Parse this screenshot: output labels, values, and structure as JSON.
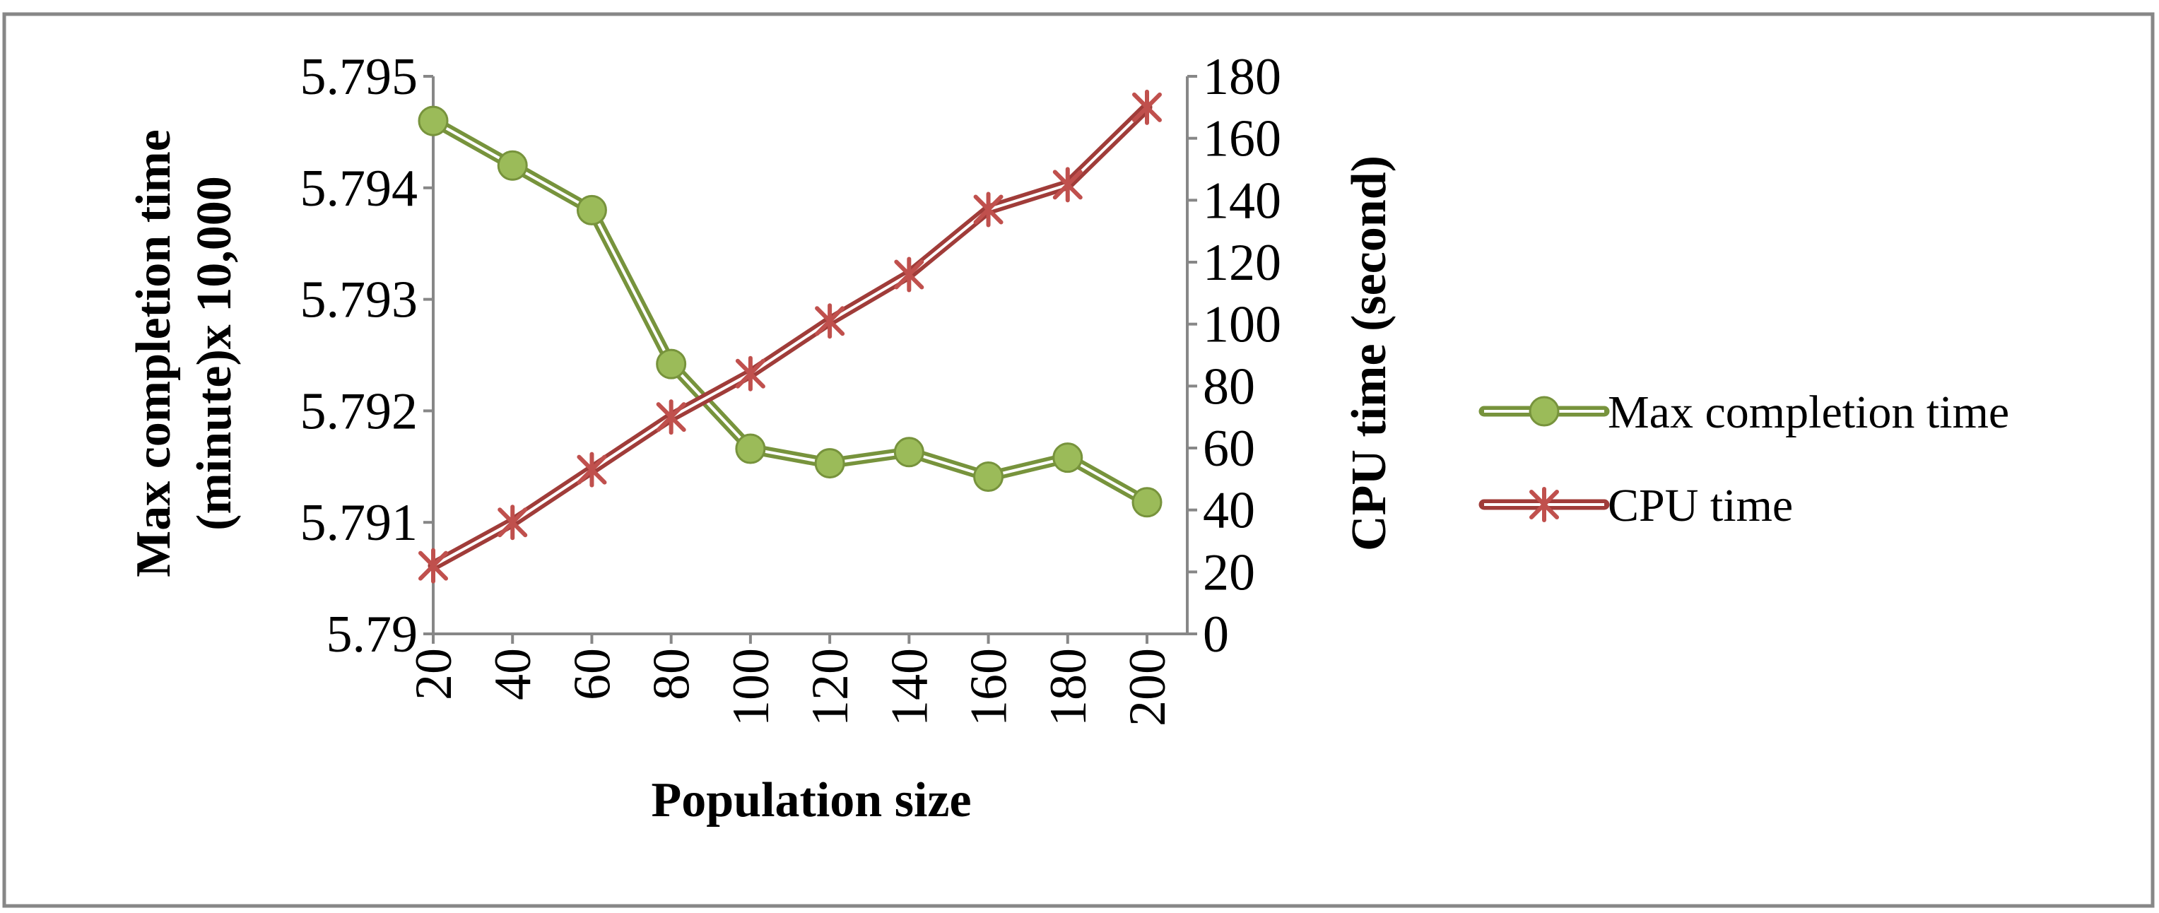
{
  "chart_data": {
    "type": "line",
    "title": "",
    "xlabel": "Population size",
    "ylabel": "Max completion time (minute)x 10,000",
    "ylabel_lines": [
      "Max completion time",
      "(minute)x 10,000"
    ],
    "y2label": "CPU time (second)",
    "categories": [
      "20",
      "40",
      "60",
      "80",
      "100",
      "120",
      "140",
      "160",
      "180",
      "200"
    ],
    "ylim": [
      5.79,
      5.795
    ],
    "yticks": [
      "5.79",
      "5.791",
      "5.792",
      "5.793",
      "5.794",
      "5.795"
    ],
    "y2lim": [
      0,
      180
    ],
    "y2ticks": [
      "0",
      "20",
      "40",
      "60",
      "80",
      "100",
      "120",
      "140",
      "160",
      "180"
    ],
    "legend_position": "right",
    "grid": false,
    "series": [
      {
        "name": "Max completion time",
        "axis": "left",
        "marker": "circle",
        "color": "#9bbb59",
        "edge_color": "#77933c",
        "values": [
          5.7946,
          5.7942,
          5.7938,
          5.79242,
          5.79166,
          5.79153,
          5.79163,
          5.79141,
          5.79158,
          5.79118
        ]
      },
      {
        "name": "CPU time",
        "axis": "right",
        "marker": "star",
        "color": "#c0504d",
        "edge_color": "#a03c39",
        "values": [
          22,
          36,
          53,
          70,
          84,
          101,
          116,
          137,
          145,
          170
        ]
      }
    ]
  }
}
